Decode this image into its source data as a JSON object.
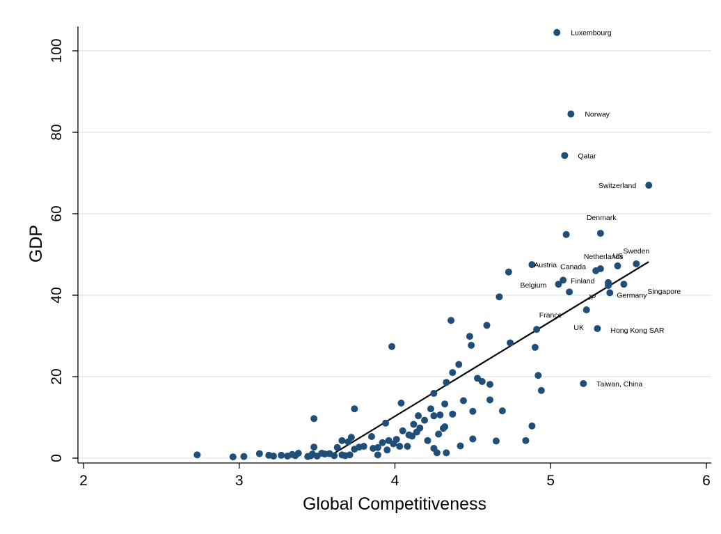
{
  "chart_data": {
    "type": "scatter",
    "title": "",
    "xlabel": "Global Competitiveness",
    "ylabel": "GDP",
    "xlim": [
      2,
      6
    ],
    "ylim": [
      0,
      100
    ],
    "x_ticks": [
      "2",
      "3",
      "4",
      "5",
      "6"
    ],
    "y_ticks": [
      "0",
      "20",
      "40",
      "60",
      "80",
      "100"
    ],
    "grid": "horizontal",
    "colors": {
      "point": "#1f4e79",
      "fit_line": "#000000",
      "grid": "#dbe8e8"
    },
    "fit_line": {
      "x": [
        3.58,
        5.63
      ],
      "y": [
        0.5,
        48.2
      ]
    },
    "labeled_points": [
      {
        "label": "Luxembourg",
        "x": 5.04,
        "y": 104.5
      },
      {
        "label": "Norway",
        "x": 5.13,
        "y": 84.5
      },
      {
        "label": "Qatar",
        "x": 5.09,
        "y": 74.3
      },
      {
        "label": "Switzerland",
        "x": 5.63,
        "y": 67.0
      },
      {
        "label": "Denmark",
        "x": 5.32,
        "y": 55.2
      },
      {
        "label": "US",
        "x": 5.43,
        "y": 47.2
      },
      {
        "label": "Sweden",
        "x": 5.55,
        "y": 47.7
      },
      {
        "label": "Netherlands",
        "x": 5.32,
        "y": 46.5
      },
      {
        "label": "Austria",
        "x": 4.88,
        "y": 47.5
      },
      {
        "label": "Canada",
        "x": 5.08,
        "y": 43.7
      },
      {
        "label": "Belgium",
        "x": 5.05,
        "y": 42.7
      },
      {
        "label": "Finland",
        "x": 5.37,
        "y": 43.1
      },
      {
        "label": "Singapore",
        "x": 5.47,
        "y": 42.7
      },
      {
        "label": "JP",
        "x": 5.12,
        "y": 40.8
      },
      {
        "label": "Germany",
        "x": 5.38,
        "y": 40.6
      },
      {
        "label": "France",
        "x": 5.23,
        "y": 36.4
      },
      {
        "label": "UK",
        "x": 5.3,
        "y": 31.8
      },
      {
        "label": "Hong Kong SAR",
        "x": 5.3,
        "y": 31.8
      },
      {
        "label": "Taiwan, China",
        "x": 5.21,
        "y": 18.3
      }
    ],
    "points": [
      {
        "x": 5.04,
        "y": 104.5
      },
      {
        "x": 5.13,
        "y": 84.5
      },
      {
        "x": 5.09,
        "y": 74.3
      },
      {
        "x": 5.63,
        "y": 67.0
      },
      {
        "x": 5.32,
        "y": 55.2
      },
      {
        "x": 5.1,
        "y": 54.9
      },
      {
        "x": 5.55,
        "y": 47.7
      },
      {
        "x": 4.88,
        "y": 47.5
      },
      {
        "x": 5.43,
        "y": 47.2
      },
      {
        "x": 5.32,
        "y": 46.5
      },
      {
        "x": 5.29,
        "y": 46.0
      },
      {
        "x": 4.73,
        "y": 45.7
      },
      {
        "x": 5.08,
        "y": 43.7
      },
      {
        "x": 5.37,
        "y": 43.1
      },
      {
        "x": 5.05,
        "y": 42.7
      },
      {
        "x": 5.47,
        "y": 42.7
      },
      {
        "x": 5.37,
        "y": 42.4
      },
      {
        "x": 5.12,
        "y": 40.8
      },
      {
        "x": 5.38,
        "y": 40.6
      },
      {
        "x": 4.67,
        "y": 39.6
      },
      {
        "x": 5.23,
        "y": 36.4
      },
      {
        "x": 4.36,
        "y": 33.8
      },
      {
        "x": 4.59,
        "y": 32.6
      },
      {
        "x": 5.3,
        "y": 31.8
      },
      {
        "x": 4.91,
        "y": 31.6
      },
      {
        "x": 4.48,
        "y": 29.9
      },
      {
        "x": 4.74,
        "y": 28.3
      },
      {
        "x": 4.49,
        "y": 27.7
      },
      {
        "x": 3.98,
        "y": 27.4
      },
      {
        "x": 4.9,
        "y": 27.2
      },
      {
        "x": 4.41,
        "y": 23.0
      },
      {
        "x": 4.37,
        "y": 21.0
      },
      {
        "x": 4.92,
        "y": 20.3
      },
      {
        "x": 4.53,
        "y": 19.6
      },
      {
        "x": 4.56,
        "y": 18.8
      },
      {
        "x": 4.33,
        "y": 18.6
      },
      {
        "x": 5.21,
        "y": 18.3
      },
      {
        "x": 4.61,
        "y": 18.1
      },
      {
        "x": 4.94,
        "y": 16.6
      },
      {
        "x": 4.25,
        "y": 15.9
      },
      {
        "x": 4.61,
        "y": 14.3
      },
      {
        "x": 4.44,
        "y": 14.1
      },
      {
        "x": 4.04,
        "y": 13.5
      },
      {
        "x": 4.32,
        "y": 13.3
      },
      {
        "x": 3.74,
        "y": 12.1
      },
      {
        "x": 4.23,
        "y": 12.1
      },
      {
        "x": 4.69,
        "y": 11.6
      },
      {
        "x": 4.5,
        "y": 11.5
      },
      {
        "x": 4.37,
        "y": 10.8
      },
      {
        "x": 4.29,
        "y": 10.6
      },
      {
        "x": 4.25,
        "y": 10.4
      },
      {
        "x": 4.15,
        "y": 10.4
      },
      {
        "x": 3.48,
        "y": 9.7
      },
      {
        "x": 4.19,
        "y": 9.3
      },
      {
        "x": 3.94,
        "y": 8.6
      },
      {
        "x": 4.12,
        "y": 8.3
      },
      {
        "x": 4.88,
        "y": 7.9
      },
      {
        "x": 4.32,
        "y": 7.7
      },
      {
        "x": 4.16,
        "y": 7.4
      },
      {
        "x": 4.31,
        "y": 7.3
      },
      {
        "x": 4.05,
        "y": 6.7
      },
      {
        "x": 4.14,
        "y": 6.4
      },
      {
        "x": 4.28,
        "y": 5.9
      },
      {
        "x": 4.11,
        "y": 5.4
      },
      {
        "x": 4.09,
        "y": 5.7
      },
      {
        "x": 3.85,
        "y": 5.3
      },
      {
        "x": 3.72,
        "y": 5.1
      },
      {
        "x": 4.5,
        "y": 4.7
      },
      {
        "x": 4.01,
        "y": 4.6
      },
      {
        "x": 3.96,
        "y": 4.3
      },
      {
        "x": 4.21,
        "y": 4.3
      },
      {
        "x": 4.65,
        "y": 4.2
      },
      {
        "x": 4.84,
        "y": 4.3
      },
      {
        "x": 3.66,
        "y": 4.3
      },
      {
        "x": 3.7,
        "y": 4.0
      },
      {
        "x": 3.92,
        "y": 3.8
      },
      {
        "x": 3.99,
        "y": 3.5
      },
      {
        "x": 4.42,
        "y": 3.0
      },
      {
        "x": 3.8,
        "y": 2.9
      },
      {
        "x": 4.03,
        "y": 2.9
      },
      {
        "x": 4.08,
        "y": 2.9
      },
      {
        "x": 3.48,
        "y": 2.7
      },
      {
        "x": 3.63,
        "y": 2.6
      },
      {
        "x": 3.89,
        "y": 2.6
      },
      {
        "x": 3.77,
        "y": 2.7
      },
      {
        "x": 3.74,
        "y": 2.2
      },
      {
        "x": 3.86,
        "y": 2.4
      },
      {
        "x": 3.95,
        "y": 2.0
      },
      {
        "x": 4.25,
        "y": 2.4
      },
      {
        "x": 4.27,
        "y": 1.3
      },
      {
        "x": 4.33,
        "y": 1.3
      },
      {
        "x": 3.13,
        "y": 1.1
      },
      {
        "x": 3.38,
        "y": 1.2
      },
      {
        "x": 3.53,
        "y": 1.2
      },
      {
        "x": 3.55,
        "y": 1.0
      },
      {
        "x": 3.58,
        "y": 1.1
      },
      {
        "x": 3.47,
        "y": 1.0
      },
      {
        "x": 3.34,
        "y": 0.9
      },
      {
        "x": 3.27,
        "y": 0.7
      },
      {
        "x": 3.19,
        "y": 0.7
      },
      {
        "x": 3.22,
        "y": 0.5
      },
      {
        "x": 3.31,
        "y": 0.5
      },
      {
        "x": 3.36,
        "y": 0.6
      },
      {
        "x": 3.44,
        "y": 0.4
      },
      {
        "x": 3.5,
        "y": 0.5
      },
      {
        "x": 3.61,
        "y": 0.6
      },
      {
        "x": 3.66,
        "y": 0.8
      },
      {
        "x": 3.68,
        "y": 0.6
      },
      {
        "x": 3.71,
        "y": 0.8
      },
      {
        "x": 3.89,
        "y": 0.8
      },
      {
        "x": 2.73,
        "y": 0.8
      },
      {
        "x": 2.96,
        "y": 0.3
      },
      {
        "x": 3.03,
        "y": 0.4
      },
      {
        "x": 3.46,
        "y": 0.6
      }
    ]
  }
}
